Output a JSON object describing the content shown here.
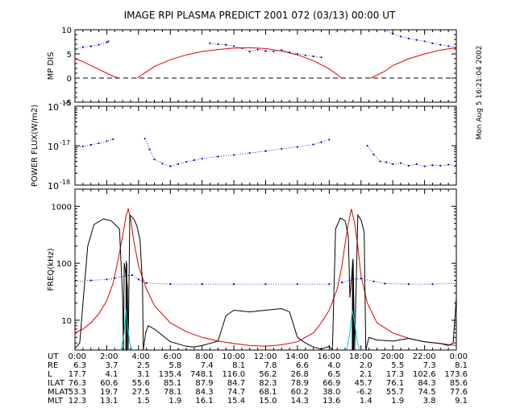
{
  "header": {
    "title": "IMAGE  RPI PLASMA PREDICT 2001 072 (03/13) 00:00 UT",
    "side_stamp": "Mon Aug  5 16:21:04 2002"
  },
  "colors": {
    "observed": "#0000cc",
    "model": "#dd0000",
    "cyan": "#00c8c8",
    "black": "#000000"
  },
  "chart_data": [
    {
      "type": "line",
      "panel": "mp_dis",
      "ylabel": "MP DIS",
      "ylim": [
        -5,
        10
      ],
      "yticks": [
        -5,
        0,
        5,
        10
      ],
      "xlim": [
        0,
        24
      ],
      "dashed_zero_line": true,
      "series": [
        {
          "role": "observed",
          "style": "dots",
          "x": [
            0.0,
            0.5,
            1.0,
            1.5,
            2.0,
            2.1
          ],
          "y": [
            6.0,
            6.4,
            6.6,
            6.9,
            7.4,
            7.6
          ]
        },
        {
          "role": "observed",
          "style": "dots",
          "x": [
            8.5,
            9.0,
            9.5,
            10.0,
            10.5,
            11.0,
            11.5,
            12.0,
            12.5,
            13.0,
            13.5,
            14.0,
            14.5,
            15.0,
            15.5
          ],
          "y": [
            7.2,
            7.0,
            6.9,
            6.6,
            6.2,
            5.5,
            5.9,
            5.6,
            5.5,
            5.8,
            5.3,
            5.0,
            4.7,
            4.5,
            4.3
          ]
        },
        {
          "role": "observed",
          "style": "dots",
          "x": [
            19.5,
            20.0,
            20.5,
            21.0,
            21.5,
            22.0,
            22.5,
            23.0,
            23.5,
            24.0
          ],
          "y": [
            10.0,
            9.2,
            8.6,
            8.2,
            7.9,
            7.6,
            7.2,
            6.9,
            6.6,
            6.4
          ]
        },
        {
          "role": "model",
          "style": "line",
          "x": [
            0.0,
            0.5,
            1.0,
            1.5,
            2.0,
            2.4,
            2.75
          ],
          "y": [
            4.0,
            3.4,
            2.6,
            1.8,
            1.0,
            0.4,
            0.0
          ]
        },
        {
          "role": "model",
          "style": "line",
          "x": [
            3.9,
            4.5,
            5.0,
            6.0,
            7.0,
            8.0,
            9.0,
            10.0,
            11.0,
            12.0,
            13.0,
            14.0,
            15.0,
            16.0,
            16.8
          ],
          "y": [
            0.0,
            1.3,
            2.4,
            3.8,
            4.8,
            5.5,
            5.9,
            6.2,
            6.3,
            6.1,
            5.6,
            4.8,
            3.6,
            1.9,
            0.0
          ]
        },
        {
          "role": "model",
          "style": "line",
          "x": [
            18.6,
            19.5,
            20.0,
            21.0,
            22.0,
            23.0,
            24.0
          ],
          "y": [
            0.0,
            1.4,
            2.6,
            4.0,
            5.0,
            5.8,
            6.3
          ]
        }
      ]
    },
    {
      "type": "line",
      "panel": "power_flux",
      "ylabel": "POWER FLUX(W/m2)",
      "yscale": "log",
      "ylim": [
        1e-18,
        1e-16
      ],
      "ytick_labels": [
        "10",
        "10",
        "10"
      ],
      "ytick_exponents": [
        "-16",
        "-17",
        "-18"
      ],
      "xlim": [
        0,
        24
      ],
      "series": [
        {
          "role": "observed",
          "style": "dots",
          "x": [
            0.0,
            0.5,
            1.0,
            1.5,
            2.0,
            2.4
          ],
          "y": [
            9e-18,
            9.6e-18,
            1.05e-17,
            1.15e-17,
            1.3e-17,
            1.45e-17
          ]
        },
        {
          "role": "observed",
          "style": "dots",
          "x": [
            4.4,
            4.7,
            5.0,
            5.5,
            6.0,
            6.5,
            7.0,
            7.5,
            8.0,
            9.0,
            10.0,
            11.0,
            12.0,
            13.0,
            14.0,
            15.0,
            15.5,
            16.0
          ],
          "y": [
            1.5e-17,
            8e-18,
            4.5e-18,
            3.5e-18,
            3e-18,
            3.4e-18,
            3.9e-18,
            4.3e-18,
            4.7e-18,
            5.3e-18,
            5.8e-18,
            6.5e-18,
            7.3e-18,
            8.3e-18,
            9.3e-18,
            1.07e-17,
            1.22e-17,
            1.42e-17
          ]
        },
        {
          "role": "observed",
          "style": "dots",
          "x": [
            18.4,
            18.8,
            19.2,
            19.6,
            20.0,
            20.5,
            21.0,
            21.5,
            22.0,
            22.5,
            23.0,
            23.5,
            24.0
          ],
          "y": [
            1e-17,
            6e-18,
            4e-18,
            3.8e-18,
            3.4e-18,
            3.6e-18,
            3.1e-18,
            3.4e-18,
            3e-18,
            3.2e-18,
            3.1e-18,
            3.3e-18,
            3.2e-18
          ]
        }
      ]
    },
    {
      "type": "line",
      "panel": "freq",
      "ylabel": "FREQ(kHz)",
      "yscale": "log",
      "ylim": [
        3,
        2000
      ],
      "yticks": [
        10,
        100,
        1000
      ],
      "xlim": [
        0,
        24
      ],
      "xticks": [
        0,
        2,
        4,
        6,
        8,
        10,
        12,
        14,
        16,
        18,
        20,
        22,
        24
      ],
      "series": [
        {
          "role": "observed",
          "style": "dots",
          "x": [
            0.0,
            1.0,
            2.0,
            2.5,
            3.2,
            3.6,
            4.0,
            4.5,
            6.0,
            8.0,
            10.0,
            12.0,
            14.0,
            16.0,
            16.8,
            17.5,
            18.0,
            18.8,
            19.5,
            21.0,
            22.5,
            24.0
          ],
          "y": [
            48,
            50,
            52,
            55,
            60,
            62,
            52,
            45,
            43,
            43,
            43,
            43,
            43,
            43,
            46,
            52,
            54,
            48,
            44,
            43,
            43,
            44
          ]
        },
        {
          "role": "model",
          "style": "line",
          "x": [
            0.0,
            0.5,
            1.0,
            1.5,
            2.0,
            2.4,
            2.7,
            3.0,
            3.2,
            3.35,
            3.5,
            3.7,
            4.0,
            4.5,
            5.0,
            6.0,
            7.0,
            8.0,
            9.0,
            10.0,
            11.0,
            12.0,
            13.0,
            14.0,
            15.0,
            15.5,
            16.0,
            16.5,
            16.8,
            17.0,
            17.2,
            17.4,
            17.6,
            17.8,
            18.0,
            18.4,
            19.0,
            20.0,
            21.0,
            22.0,
            23.0,
            24.0
          ],
          "y": [
            6,
            7,
            9,
            13,
            22,
            45,
            110,
            300,
            650,
            900,
            600,
            250,
            90,
            35,
            18,
            9,
            6.3,
            5.0,
            4.3,
            3.9,
            3.6,
            3.5,
            3.7,
            4.2,
            6.0,
            9,
            15,
            35,
            90,
            220,
            500,
            900,
            500,
            200,
            60,
            20,
            9,
            6,
            4.8,
            4.2,
            3.9,
            3.6
          ]
        },
        {
          "role": "black",
          "style": "line",
          "x": [
            0.0,
            0.3,
            0.5,
            0.8,
            1.2,
            1.8,
            2.3,
            2.8,
            3.0,
            3.05,
            3.1,
            3.3,
            3.35,
            3.45,
            3.7,
            3.9,
            4.1,
            4.25,
            4.3,
            4.45,
            4.6,
            5.0,
            6.0,
            7.0,
            7.5,
            8.0,
            9.0,
            9.5,
            10.0,
            11.0,
            12.0,
            13.0,
            13.5,
            14.0,
            14.5,
            15.0,
            15.5,
            16.0,
            16.2,
            16.4,
            16.7,
            17.0,
            17.2,
            17.3,
            17.5,
            17.6,
            17.8,
            18.0,
            18.2,
            18.3,
            18.5,
            19.0,
            20.0,
            21.0,
            22.0,
            23.0,
            23.5,
            23.8,
            24.0
          ],
          "y": [
            3.2,
            4,
            20,
            200,
            480,
            600,
            550,
            400,
            25,
            3.0,
            100,
            40,
            3.0,
            700,
            600,
            450,
            250,
            40,
            3.0,
            6,
            8,
            7,
            4.2,
            3.5,
            3.4,
            3.6,
            4.3,
            12,
            15,
            14,
            15,
            16,
            14,
            5,
            4.0,
            3.4,
            3.1,
            3.5,
            3.0,
            400,
            620,
            560,
            300,
            25,
            120,
            3.0,
            700,
            580,
            350,
            3.0,
            5,
            4.5,
            4.3,
            4.8,
            4.2,
            3.9,
            3.6,
            4,
            25
          ]
        },
        {
          "role": "black",
          "style": "line",
          "x": [
            3.2,
            3.22,
            3.24,
            3.26,
            3.28
          ],
          "y": [
            3.0,
            110,
            3.0,
            100,
            3.0
          ]
        },
        {
          "role": "black",
          "style": "line",
          "x": [
            17.45,
            17.47,
            17.49,
            17.51,
            17.53
          ],
          "y": [
            3.0,
            110,
            3.0,
            100,
            3.0
          ]
        },
        {
          "role": "cyan",
          "style": "line",
          "x": [
            2.9,
            3.1,
            3.2,
            3.3,
            3.45,
            3.6
          ],
          "y": [
            3.0,
            6,
            16,
            8,
            4,
            3.0
          ]
        },
        {
          "role": "cyan",
          "style": "line",
          "x": [
            17.1,
            17.3,
            17.45,
            17.6,
            17.75,
            17.9
          ],
          "y": [
            3.0,
            6,
            15,
            9,
            4.5,
            3.0
          ]
        }
      ]
    }
  ],
  "ephemeris": {
    "rows": [
      {
        "label": "UT",
        "values": [
          "0:00",
          "2:00",
          "4:00",
          "6:00",
          "8:00",
          "10:00",
          "12:00",
          "14:00",
          "16:00",
          "18:00",
          "20:00",
          "22:00",
          "0:00"
        ]
      },
      {
        "label": "RE",
        "values": [
          "6.3",
          "3.7",
          "2.5",
          "5.8",
          "7.4",
          "8.1",
          "7.8",
          "6.6",
          "4.0",
          "2.0",
          "5.5",
          "7.3",
          "8.1"
        ]
      },
      {
        "label": "L",
        "values": [
          "17.7",
          "4.1",
          "3.1",
          "135.4",
          "748.1",
          "116.0",
          "56.2",
          "26.8",
          "6.5",
          "2.1",
          "17.3",
          "102.6",
          "173.6"
        ]
      },
      {
        "label": "ILAT",
        "values": [
          "76.3",
          "60.6",
          "55.6",
          "85.1",
          "87.9",
          "84.7",
          "82.3",
          "78.9",
          "66.9",
          "45.7",
          "76.1",
          "84.3",
          "85.6"
        ]
      },
      {
        "label": "MLAT",
        "values": [
          "53.3",
          "19.7",
          "27.5",
          "78.1",
          "84.3",
          "74.7",
          "68.1",
          "60.2",
          "38.0",
          "-6.2",
          "55.7",
          "74.5",
          "77.6"
        ]
      },
      {
        "label": "MLT",
        "values": [
          "12.3",
          "13.1",
          "1.5",
          "1.9",
          "16.1",
          "15.4",
          "15.0",
          "14.3",
          "13.6",
          "1.4",
          "1.9",
          "3.8",
          "9.1"
        ]
      }
    ]
  }
}
